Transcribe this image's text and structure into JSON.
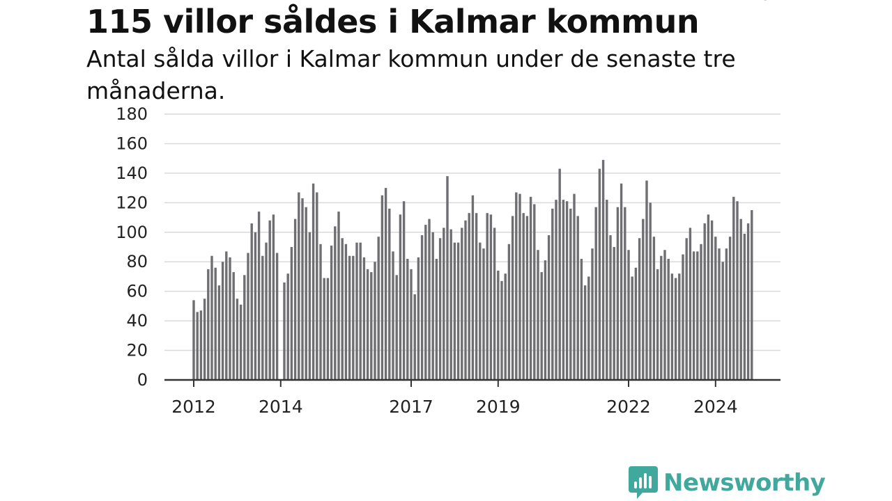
{
  "title": "115 villor såldes i Kalmar kommun",
  "subtitle": "Antal sålda villor i Kalmar kommun under de senaste tre månaderna.",
  "brand": {
    "name": "Newsworthy",
    "icon": "newsworthy-logo-icon",
    "color": "#40a89c"
  },
  "chart_data": {
    "type": "bar",
    "title": "115 villor såldes i Kalmar kommun",
    "subtitle": "Antal sålda villor i Kalmar kommun under de senaste tre månaderna.",
    "xlabel": "",
    "ylabel": "",
    "ylim": [
      0,
      180
    ],
    "y_ticks": [
      0,
      20,
      40,
      60,
      80,
      100,
      120,
      140,
      160,
      180
    ],
    "x_tick_labels": [
      "2012",
      "2014",
      "2017",
      "2019",
      "2022",
      "2024"
    ],
    "x_ticks_at_index": [
      0,
      24,
      60,
      84,
      120,
      144
    ],
    "grid": true,
    "bar_color": "#6e6e73",
    "highlight_color": "#1a9e92",
    "highlight_index": 155,
    "annotation": "115",
    "values": [
      54,
      46,
      47,
      55,
      75,
      84,
      76,
      64,
      80,
      87,
      83,
      73,
      55,
      51,
      71,
      86,
      106,
      100,
      114,
      84,
      93,
      108,
      112,
      86,
      0,
      66,
      72,
      90,
      109,
      127,
      123,
      117,
      100,
      133,
      127,
      92,
      69,
      69,
      91,
      104,
      114,
      96,
      92,
      84,
      84,
      93,
      93,
      83,
      75,
      73,
      80,
      97,
      125,
      130,
      116,
      87,
      71,
      112,
      121,
      82,
      75,
      58,
      83,
      98,
      105,
      109,
      100,
      82,
      96,
      103,
      138,
      102,
      93,
      93,
      103,
      108,
      113,
      125,
      113,
      93,
      89,
      113,
      112,
      103,
      74,
      67,
      72,
      92,
      111,
      127,
      126,
      113,
      111,
      124,
      119,
      88,
      73,
      81,
      98,
      116,
      122,
      143,
      122,
      121,
      116,
      126,
      111,
      82,
      64,
      70,
      89,
      117,
      143,
      149,
      122,
      98,
      90,
      117,
      133,
      117,
      88,
      70,
      76,
      96,
      109,
      135,
      120,
      97,
      75,
      84,
      88,
      82,
      72,
      69,
      72,
      85,
      96,
      103,
      87,
      87,
      92,
      106,
      112,
      108,
      97,
      89,
      80,
      89,
      97,
      124,
      121,
      109,
      99,
      106,
      115
    ]
  }
}
